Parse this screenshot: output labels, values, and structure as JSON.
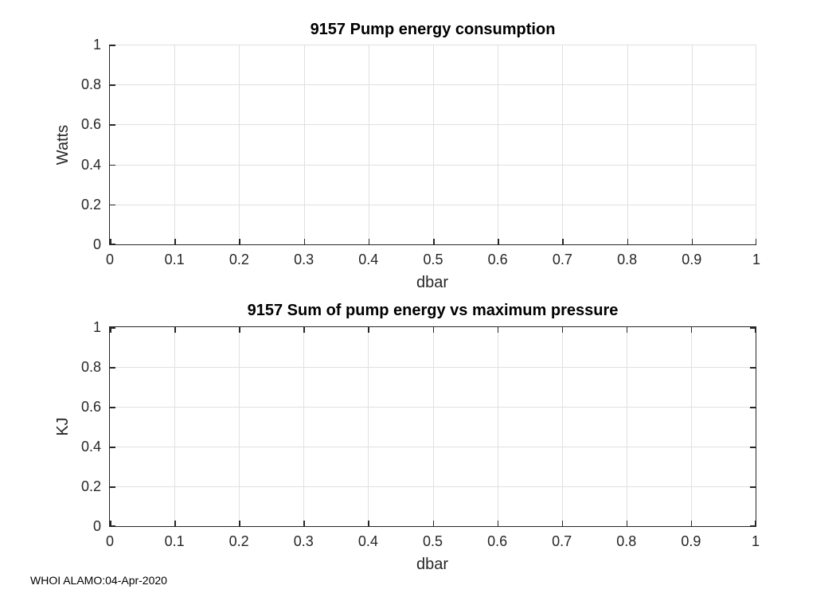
{
  "figure": {
    "background": "#ffffff",
    "axis_color": "#262626",
    "grid_color": "#e0e0e0",
    "title_color": "#000000",
    "footer_text": "WHOI ALAMO:04-Apr-2020"
  },
  "chart_data": [
    {
      "type": "line",
      "title": "9157 Pump energy consumption",
      "xlabel": "dbar",
      "ylabel": "Watts",
      "xlim": [
        0,
        1
      ],
      "ylim": [
        0,
        1
      ],
      "xticks": [
        0,
        0.1,
        0.2,
        0.3,
        0.4,
        0.5,
        0.6,
        0.7,
        0.8,
        0.9,
        1
      ],
      "xtick_labels": [
        "0",
        "0.1",
        "0.2",
        "0.3",
        "0.4",
        "0.5",
        "0.6",
        "0.7",
        "0.8",
        "0.9",
        "1"
      ],
      "yticks": [
        0,
        0.2,
        0.4,
        0.6,
        0.8,
        1
      ],
      "ytick_labels": [
        "0",
        "0.2",
        "0.4",
        "0.6",
        "0.8",
        "1"
      ],
      "grid": true,
      "box": false,
      "legend": null,
      "series": []
    },
    {
      "type": "line",
      "title": "9157 Sum of pump energy vs maximum pressure",
      "xlabel": "dbar",
      "ylabel": "KJ",
      "xlim": [
        0,
        1
      ],
      "ylim": [
        0,
        1
      ],
      "xticks": [
        0,
        0.1,
        0.2,
        0.3,
        0.4,
        0.5,
        0.6,
        0.7,
        0.8,
        0.9,
        1
      ],
      "xtick_labels": [
        "0",
        "0.1",
        "0.2",
        "0.3",
        "0.4",
        "0.5",
        "0.6",
        "0.7",
        "0.8",
        "0.9",
        "1"
      ],
      "yticks": [
        0,
        0.2,
        0.4,
        0.6,
        0.8,
        1
      ],
      "ytick_labels": [
        "0",
        "0.2",
        "0.4",
        "0.6",
        "0.8",
        "1"
      ],
      "grid": true,
      "box": true,
      "legend": null,
      "series": []
    }
  ]
}
